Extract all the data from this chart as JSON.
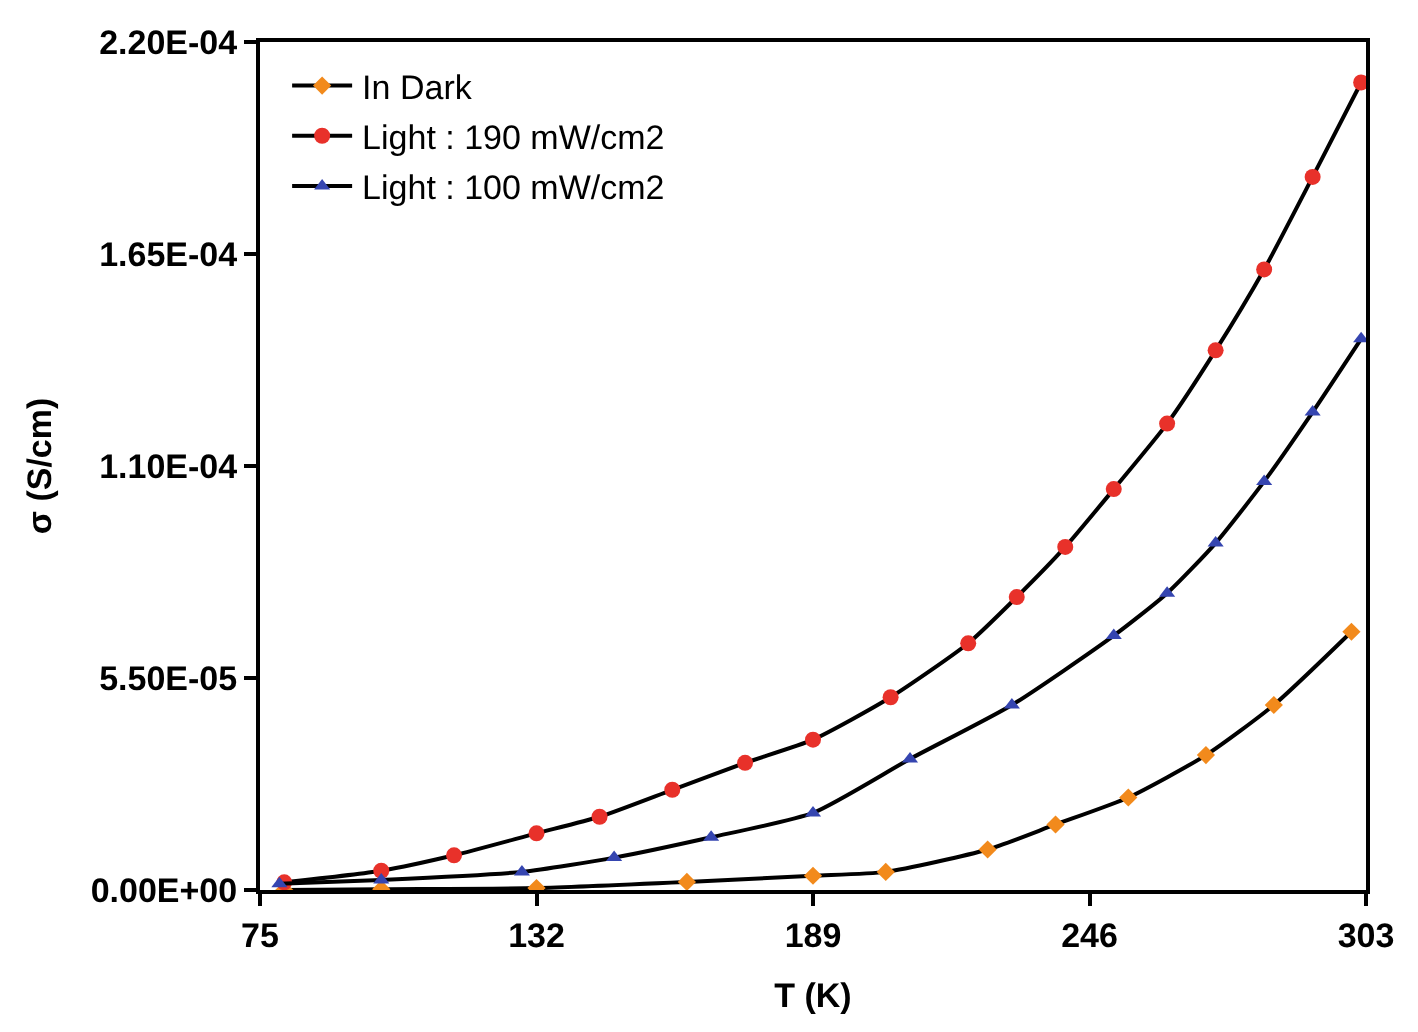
{
  "chart_data": {
    "type": "line",
    "xlabel": "T (K)",
    "ylabel": "σ (S/cm)",
    "xlim": [
      75,
      303
    ],
    "xticks": [
      75,
      132,
      189,
      246,
      303
    ],
    "ylim": [
      0,
      0.00022
    ],
    "yticks": [
      {
        "value": 0,
        "label": "0.00E+00"
      },
      {
        "value": 5.5e-05,
        "label": "5.50E-05"
      },
      {
        "value": 0.00011,
        "label": "1.10E-04"
      },
      {
        "value": 0.000165,
        "label": "1.65E-04"
      },
      {
        "value": 0.00022,
        "label": "2.20E-04"
      }
    ],
    "grid": false,
    "legend": "top left",
    "series": [
      {
        "name": "In Dark",
        "color": "#f28a1c",
        "marker": "diamond",
        "x": [
          80,
          100,
          132,
          163,
          189,
          204,
          225,
          239,
          254,
          270,
          284,
          300
        ],
        "values": [
          0,
          2e-07,
          5e-07,
          2.1e-06,
          3.7e-06,
          4.7e-06,
          1.05e-05,
          1.7e-05,
          2.4e-05,
          3.5e-05,
          4.8e-05,
          6.7e-05
        ]
      },
      {
        "name": "Light : 190 mW/cm2",
        "color": "#e8312a",
        "marker": "circle",
        "x": [
          80,
          100,
          115,
          132,
          145,
          160,
          175,
          189,
          205,
          221,
          231,
          241,
          251,
          262,
          272,
          282,
          292,
          302
        ],
        "values": [
          2e-06,
          5e-06,
          9e-06,
          1.47e-05,
          1.9e-05,
          2.6e-05,
          3.3e-05,
          3.9e-05,
          5e-05,
          6.4e-05,
          7.6e-05,
          8.9e-05,
          0.000104,
          0.000121,
          0.00014,
          0.000161,
          0.000185,
          0.0002095
        ]
      },
      {
        "name": "Light : 100 mW/cm2",
        "color": "#3545b0",
        "marker": "triangle",
        "x": [
          79,
          100,
          129,
          148,
          168,
          189,
          209,
          230,
          251,
          262,
          272,
          282,
          292,
          302
        ],
        "values": [
          1.6e-06,
          2.6e-06,
          4.7e-06,
          8.4e-06,
          1.37e-05,
          2e-05,
          3.4e-05,
          4.8e-05,
          6.6e-05,
          7.7e-05,
          9e-05,
          0.000106,
          0.000124,
          0.000143
        ]
      }
    ]
  }
}
